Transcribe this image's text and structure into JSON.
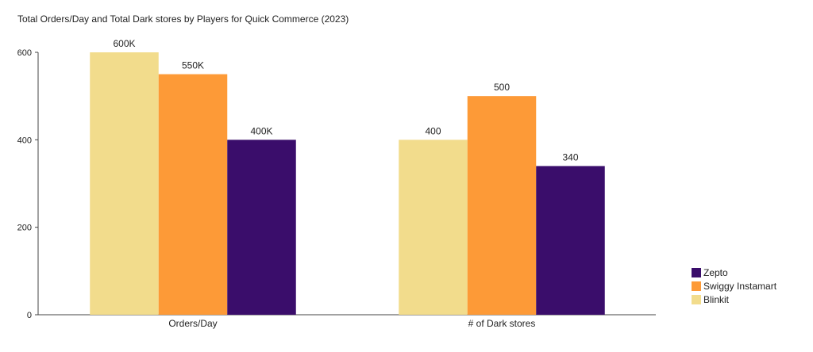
{
  "chart_data": {
    "type": "bar",
    "title": "Total Orders/Day and Total Dark stores by Players for Quick Commerce (2023)",
    "xlabel": "",
    "ylabel": "",
    "categories": [
      "Orders/Day",
      "# of Dark stores"
    ],
    "series": [
      {
        "name": "Blinkit",
        "color": "#f2dc8c",
        "values": [
          600,
          400
        ],
        "labels": [
          "600K",
          "400"
        ]
      },
      {
        "name": "Swiggy Instamart",
        "color": "#fd9a37",
        "values": [
          550,
          500
        ],
        "labels": [
          "550K",
          "500"
        ]
      },
      {
        "name": "Zepto",
        "color": "#3a0d6b",
        "values": [
          400,
          340
        ],
        "labels": [
          "400K",
          "340"
        ]
      }
    ],
    "ylim": [
      0,
      600
    ],
    "yticks": [
      0,
      200,
      400,
      600
    ],
    "grid": false,
    "legend": {
      "position": "bottom-right",
      "order": [
        "Zepto",
        "Swiggy Instamart",
        "Blinkit"
      ]
    }
  }
}
